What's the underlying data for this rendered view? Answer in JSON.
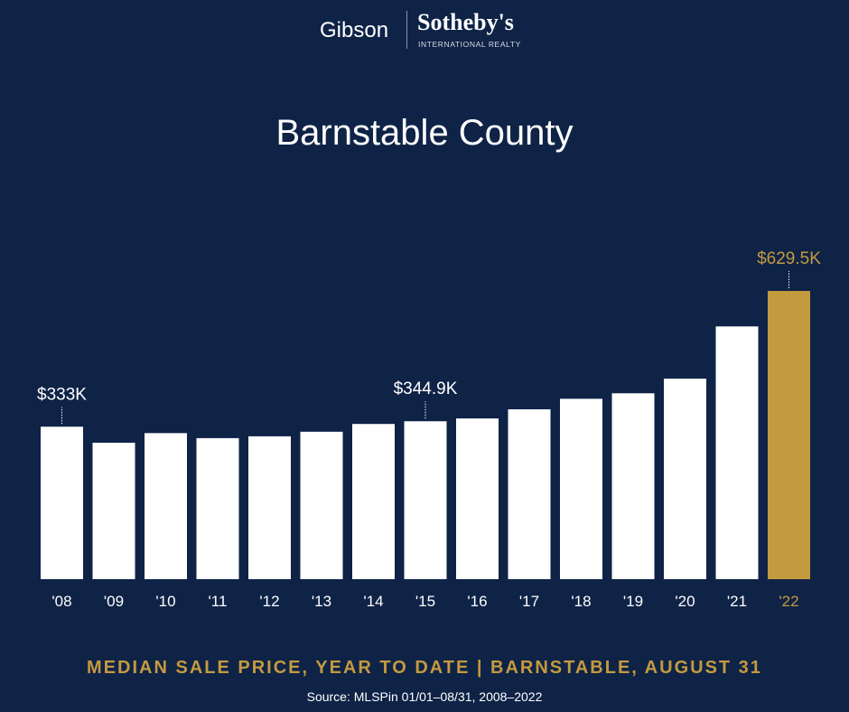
{
  "logo": {
    "left": "Gibson",
    "right": "Sotheby's",
    "tagline": "INTERNATIONAL REALTY"
  },
  "chart_data": {
    "type": "bar",
    "title": "Barnstable County",
    "subtitle": "MEDIAN SALE PRICE, YEAR TO DATE | BARNSTABLE, AUGUST 31",
    "source": "Source: MLSPin 01/01–08/31, 2008–2022",
    "categories": [
      "'08",
      "'09",
      "'10",
      "'11",
      "'12",
      "'13",
      "'14",
      "'15",
      "'16",
      "'17",
      "'18",
      "'19",
      "'20",
      "'21",
      "'22"
    ],
    "values": [
      333,
      298,
      319,
      308,
      312,
      322,
      339,
      344.9,
      351,
      371,
      394,
      406,
      438,
      552,
      629.5
    ],
    "unit": "thousand USD",
    "annotations": [
      {
        "index": 0,
        "label": "$333K"
      },
      {
        "index": 7,
        "label": "$344.9K"
      },
      {
        "index": 14,
        "label": "$629.5K"
      }
    ],
    "ylim": [
      0,
      629.5
    ],
    "grid": false,
    "colors": {
      "bar": "#ffffff",
      "highlight": "#c49a3f",
      "background": "#0f2347"
    }
  }
}
